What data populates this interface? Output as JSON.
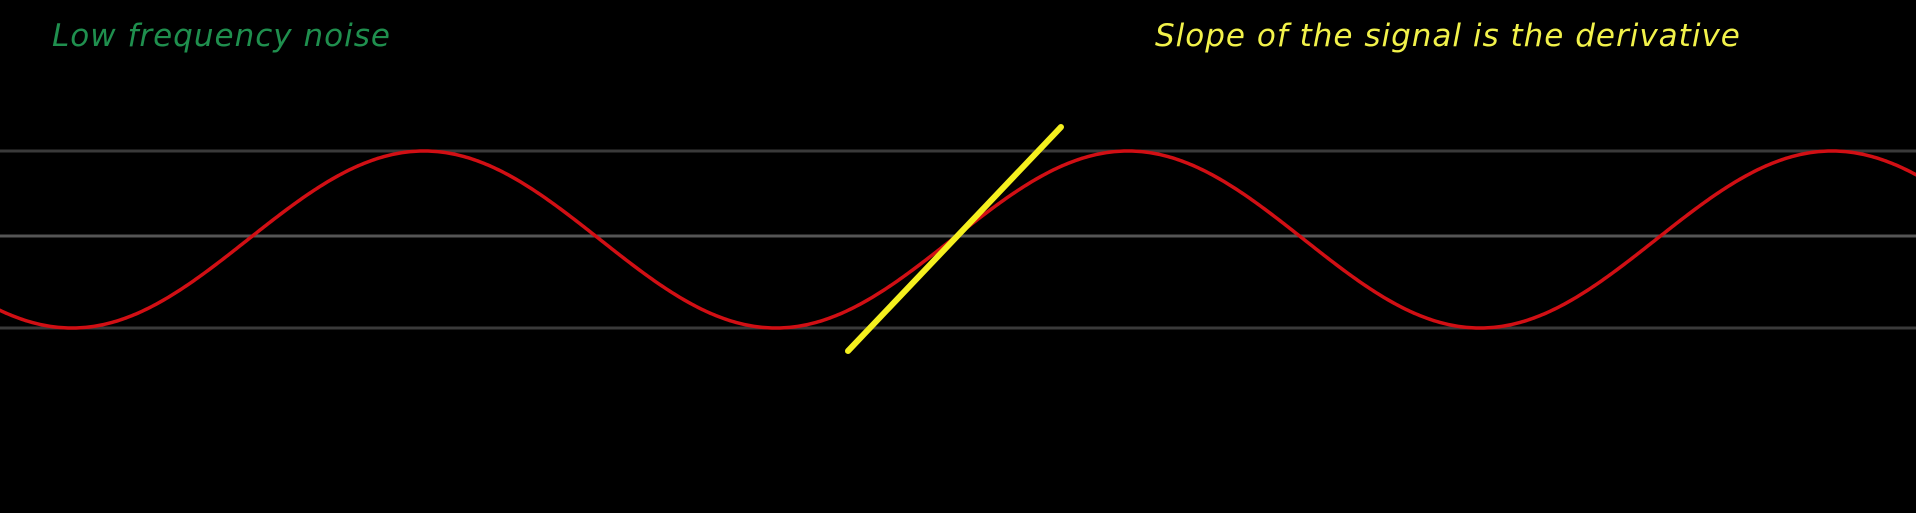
{
  "annotations": {
    "left": {
      "text": "Low frequency noise",
      "color": "#1f8f4e"
    },
    "right": {
      "text": "Slope of the signal is the derivative",
      "color": "#f2f24a"
    }
  },
  "colors": {
    "background": "#000000",
    "reference_line": "#3a3a3a",
    "center_line": "#555555",
    "signal": "#d10f14",
    "tangent": "#f5f01e"
  },
  "signal": {
    "shape": "sine",
    "cycles_shown": 2.7
  }
}
